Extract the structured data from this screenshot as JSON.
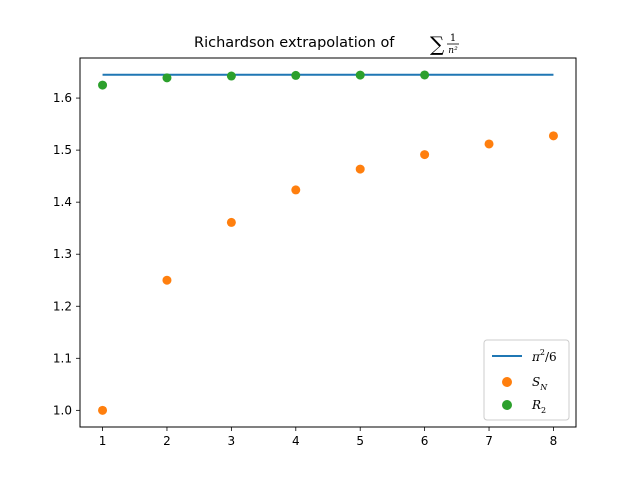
{
  "chart_data": {
    "type": "scatter",
    "title": "Richardson extrapolation of ∑ 1/n²",
    "title_parts": {
      "prefix": "Richardson extrapolation of ",
      "sum_symbol": "∑",
      "numerator": "1",
      "denominator": "n²"
    },
    "xlabel": "",
    "ylabel": "",
    "xlim": [
      0.65,
      8.35
    ],
    "ylim": [
      0.968,
      1.677
    ],
    "xticks": [
      1,
      2,
      3,
      4,
      5,
      6,
      7,
      8
    ],
    "yticks": [
      1.0,
      1.1,
      1.2,
      1.3,
      1.4,
      1.5,
      1.6
    ],
    "ytick_labels": [
      "1.0",
      "1.1",
      "1.2",
      "1.3",
      "1.4",
      "1.5",
      "1.6"
    ],
    "grid": false,
    "legend_position": "bottom-right",
    "series": [
      {
        "name": "π²/6",
        "kind": "line",
        "color": "#1f77b4",
        "x": [
          1,
          8
        ],
        "y": [
          1.644934,
          1.644934
        ]
      },
      {
        "name": "S_N",
        "kind": "scatter",
        "color": "#ff7f0e",
        "x": [
          1,
          2,
          3,
          4,
          5,
          6,
          7,
          8
        ],
        "y": [
          1.0,
          1.25,
          1.3611,
          1.4236,
          1.4636,
          1.4914,
          1.5118,
          1.5274
        ]
      },
      {
        "name": "R_2",
        "kind": "scatter",
        "color": "#2ca02c",
        "x": [
          1,
          2,
          3,
          4,
          5,
          6
        ],
        "y": [
          1.625,
          1.6389,
          1.6424,
          1.6436,
          1.6442,
          1.6444
        ]
      }
    ],
    "legend": [
      {
        "base": "π",
        "sup": "2",
        "rest": "/6"
      },
      {
        "base": "S",
        "sub": "N"
      },
      {
        "base": "R",
        "sub": "2"
      }
    ]
  }
}
